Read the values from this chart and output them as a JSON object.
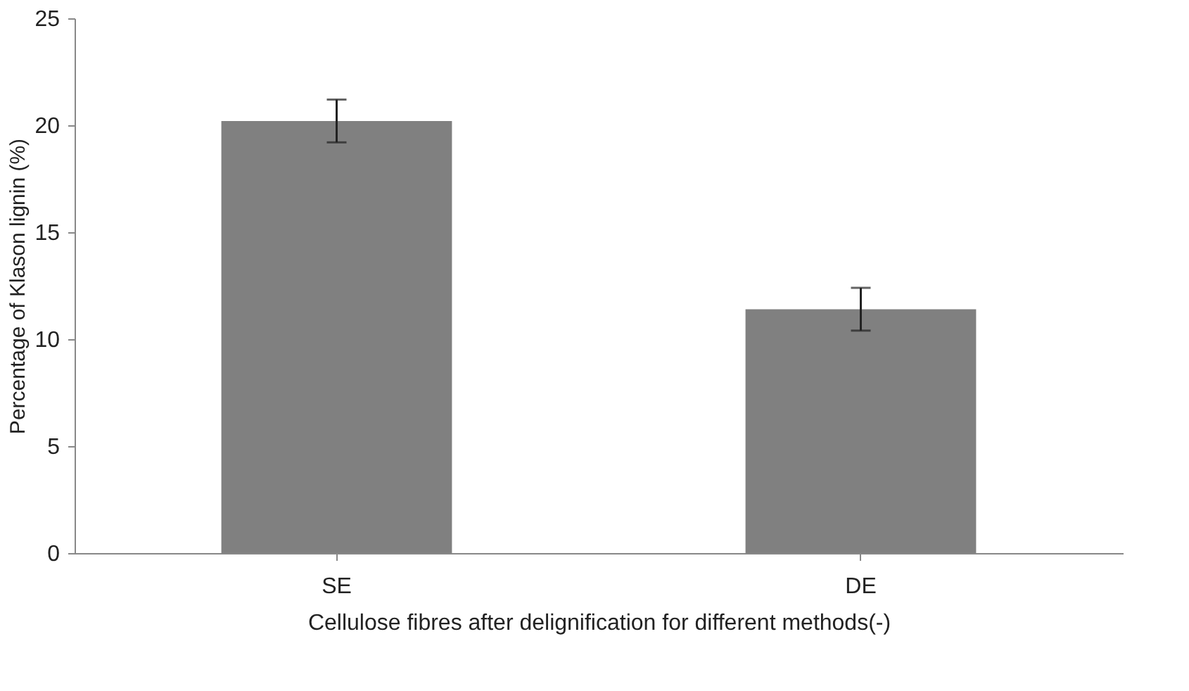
{
  "chart_data": {
    "type": "bar",
    "xlabel": "Cellulose fibres after delignification  for different methods(-)",
    "ylabel": "Percentage of Klason lignin  (%)",
    "categories": [
      "SE",
      "DE"
    ],
    "series": [
      {
        "color": "#808080",
        "values": [
          20.2,
          11.4
        ],
        "errors": [
          1.0,
          1.0
        ]
      }
    ],
    "ylim": [
      0,
      25
    ],
    "yticks": [
      0,
      5,
      10,
      15,
      20,
      25
    ],
    "grid": false
  }
}
